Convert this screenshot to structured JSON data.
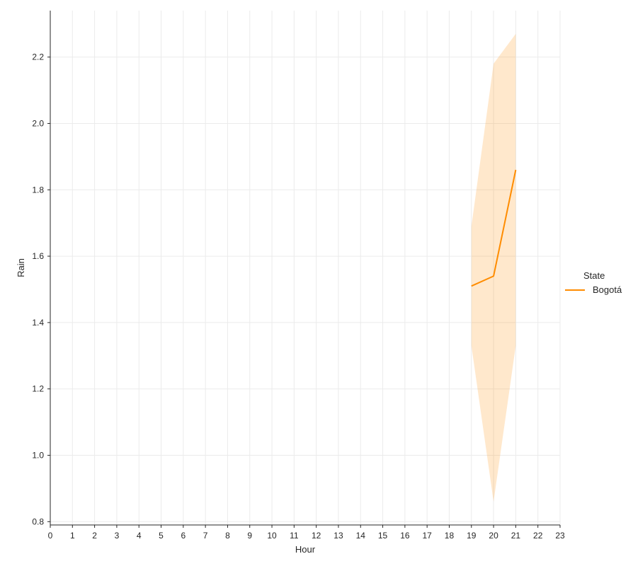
{
  "chart_data": {
    "type": "line",
    "xlabel": "Hour",
    "ylabel": "Rain",
    "xlim": [
      0,
      23
    ],
    "ylim": [
      0.79,
      2.34
    ],
    "x_ticks": [
      0,
      1,
      2,
      3,
      4,
      5,
      6,
      7,
      8,
      9,
      10,
      11,
      12,
      13,
      14,
      15,
      16,
      17,
      18,
      19,
      20,
      21,
      22,
      23
    ],
    "y_ticks": [
      0.8,
      1.0,
      1.2,
      1.4,
      1.6,
      1.8,
      2.0,
      2.2
    ],
    "grid": true,
    "legend": {
      "title": "State",
      "placement": "right"
    },
    "series": [
      {
        "name": "Bogotá",
        "color": "#ff8c00",
        "x": [
          19,
          20,
          21
        ],
        "y": [
          1.51,
          1.54,
          1.86
        ],
        "ci_lower": [
          1.33,
          0.86,
          1.33
        ],
        "ci_upper": [
          1.69,
          2.18,
          2.27
        ]
      }
    ]
  }
}
